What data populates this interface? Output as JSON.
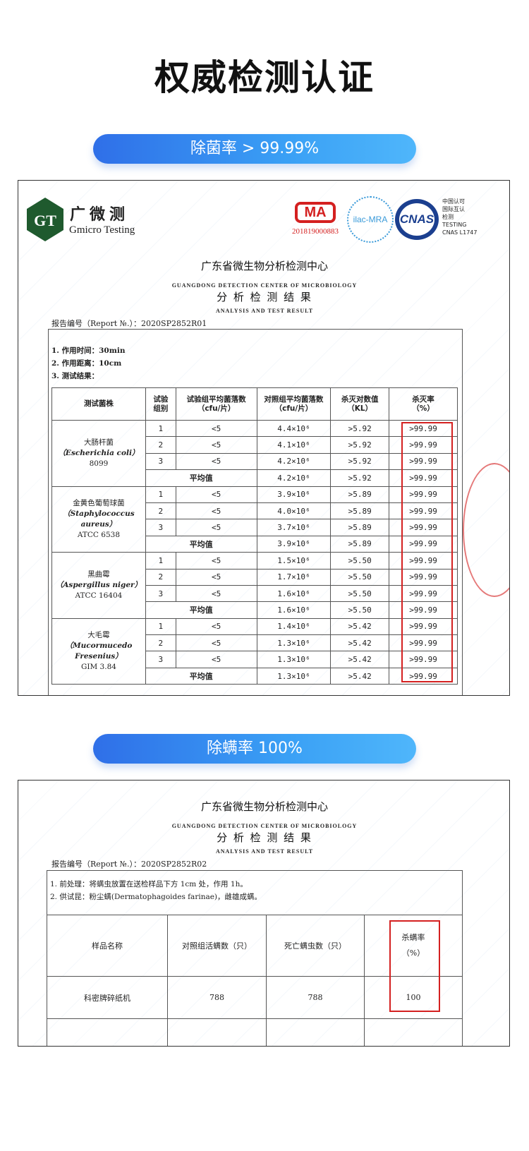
{
  "title": "权威检测认证",
  "pill1": "除菌率 > 99.99%",
  "pill2": "除螨率 100%",
  "colors": {
    "accent_start": "#2f6fe8",
    "accent_end": "#4fb6fb",
    "highlight": "#d42020",
    "logo_green": "#1f5a2e"
  },
  "doc1": {
    "logo_cn": "广微测",
    "logo_en": "Gmicro Testing",
    "logo_mark": "GT",
    "cma_number": "201819000883",
    "cma_label": "MA",
    "ilac": "ilac-MRA",
    "cnas": "CNAS",
    "cnas_text": [
      "中国认可",
      "国际互认",
      "检测",
      "TESTING",
      "CNAS L1747"
    ],
    "center_cn": "广东省微生物分析检测中心",
    "center_en": "GUANGDONG  DETECTION  CENTER  OF  MICROBIOLOGY",
    "result_cn": "分 析 检 测 结 果",
    "result_en": "ANALYSIS AND TEST RESULT",
    "report_no": "报告编号（Report №.）：2020SP2852R01",
    "notes": [
      "1. 作用时间：30min",
      "2. 作用距离：10cm",
      "3. 测试结果："
    ],
    "headers": [
      "测试菌株",
      "试验\n组别",
      "试验组平均菌落数\n（cfu/片）",
      "对照组平均菌落数\n（cfu/片）",
      "杀灭对数值\n（KL）",
      "杀灭率\n（%）"
    ],
    "avg_label": "平均值",
    "strains": [
      {
        "name": [
          "大肠杆菌",
          "（Escherichia coli）",
          "8099"
        ],
        "rows": [
          [
            "1",
            "<5",
            "4.4×10⁶",
            ">5.92",
            ">99.99"
          ],
          [
            "2",
            "<5",
            "4.1×10⁶",
            ">5.92",
            ">99.99"
          ],
          [
            "3",
            "<5",
            "4.2×10⁶",
            ">5.92",
            ">99.99"
          ]
        ],
        "avg": [
          "4.2×10⁶",
          ">5.92",
          ">99.99"
        ]
      },
      {
        "name": [
          "金黄色葡萄球菌",
          "（Staphylococcus",
          "aureus）",
          "ATCC 6538"
        ],
        "rows": [
          [
            "1",
            "<5",
            "3.9×10⁶",
            ">5.89",
            ">99.99"
          ],
          [
            "2",
            "<5",
            "4.0×10⁶",
            ">5.89",
            ">99.99"
          ],
          [
            "3",
            "<5",
            "3.7×10⁶",
            ">5.89",
            ">99.99"
          ]
        ],
        "avg": [
          "3.9×10⁶",
          ">5.89",
          ">99.99"
        ]
      },
      {
        "name": [
          "黑曲霉",
          "（Aspergillus niger）",
          "ATCC 16404"
        ],
        "rows": [
          [
            "1",
            "<5",
            "1.5×10⁶",
            ">5.50",
            ">99.99"
          ],
          [
            "2",
            "<5",
            "1.7×10⁶",
            ">5.50",
            ">99.99"
          ],
          [
            "3",
            "<5",
            "1.6×10⁶",
            ">5.50",
            ">99.99"
          ]
        ],
        "avg": [
          "1.6×10⁶",
          ">5.50",
          ">99.99"
        ]
      },
      {
        "name": [
          "大毛霉",
          "（Mucormucedo",
          "Fresenius）",
          "GIM 3.84"
        ],
        "rows": [
          [
            "1",
            "<5",
            "1.4×10⁶",
            ">5.42",
            ">99.99"
          ],
          [
            "2",
            "<5",
            "1.3×10⁶",
            ">5.42",
            ">99.99"
          ],
          [
            "3",
            "<5",
            "1.3×10⁶",
            ">5.42",
            ">99.99"
          ]
        ],
        "avg": [
          "1.3×10⁶",
          ">5.42",
          ">99.99"
        ]
      }
    ]
  },
  "doc2": {
    "center_cn": "广东省微生物分析检测中心",
    "center_en": "GUANGDONG  DETECTION  CENTER  OF  MICROBIOLOGY",
    "result_cn": "分 析 检 测 结 果",
    "result_en": "ANALYSIS AND TEST RESULT",
    "report_no": "报告编号（Report №.）：2020SP2852R02",
    "notes": [
      "1. 前处理：将螨虫放置在送检样品下方 1cm 处，作用 1h。",
      "2. 供试昆：粉尘螨(Dermatophagoides farinae)，雌雄成螨。"
    ],
    "headers": [
      "样品名称",
      "对照组活螨数（只）",
      "死亡螨虫数（只）",
      "杀螨率\n（%）"
    ],
    "row": [
      "科密牌碎纸机",
      "788",
      "788",
      "100"
    ]
  }
}
